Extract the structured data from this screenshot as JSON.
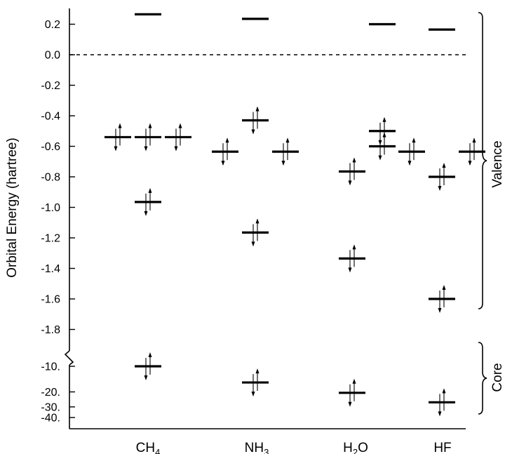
{
  "chart_data": {
    "type": "scatter",
    "ylabel": "Orbital Energy (hartree)",
    "categories": [
      "CH4",
      "NH3",
      "H2O",
      "HF"
    ],
    "y_axis_valence": {
      "range": [
        -1.8,
        0.3
      ],
      "ticks": [
        0.2,
        0.0,
        -0.2,
        -0.4,
        -0.6,
        -0.8,
        -1.0,
        -1.2,
        -1.4,
        -1.6,
        -1.8
      ],
      "tick_labels": [
        "0.2",
        "0.0",
        "-0.2",
        "-0.4",
        "-0.6",
        "-0.8",
        "-1.0",
        "-1.2",
        "-1.4",
        "-1.6",
        "-1.8"
      ]
    },
    "y_axis_core": {
      "ticks": [
        -10,
        -20,
        -30,
        -40
      ],
      "tick_labels": [
        "-10.",
        "-20.",
        "-30.",
        "-40."
      ]
    },
    "zero_reference": {
      "value": 0.0,
      "style": "dashed"
    },
    "orbitals": [
      {
        "molecule": "CH4",
        "energy": 0.265,
        "occupied": false,
        "degeneracy": 1
      },
      {
        "molecule": "CH4",
        "energy": -0.54,
        "occupied": true,
        "degeneracy": 3
      },
      {
        "molecule": "CH4",
        "energy": -0.965,
        "occupied": true,
        "degeneracy": 1
      },
      {
        "molecule": "CH4",
        "energy": -10.0,
        "occupied": true,
        "degeneracy": 1,
        "region": "core"
      },
      {
        "molecule": "NH3",
        "energy": 0.235,
        "occupied": false,
        "degeneracy": 1
      },
      {
        "molecule": "NH3",
        "energy": -0.43,
        "occupied": true,
        "degeneracy": 1
      },
      {
        "molecule": "NH3",
        "energy": -0.635,
        "occupied": true,
        "degeneracy": 2
      },
      {
        "molecule": "NH3",
        "energy": -1.165,
        "occupied": true,
        "degeneracy": 1
      },
      {
        "molecule": "NH3",
        "energy": -15.5,
        "occupied": true,
        "degeneracy": 1,
        "region": "core"
      },
      {
        "molecule": "H2O",
        "energy": 0.2,
        "occupied": false,
        "degeneracy": 1
      },
      {
        "molecule": "H2O",
        "energy": -0.5,
        "occupied": true,
        "degeneracy": 1
      },
      {
        "molecule": "H2O",
        "energy": -0.6,
        "occupied": true,
        "degeneracy": 1
      },
      {
        "molecule": "H2O",
        "energy": -0.765,
        "occupied": true,
        "degeneracy": 1
      },
      {
        "molecule": "H2O",
        "energy": -1.335,
        "occupied": true,
        "degeneracy": 1
      },
      {
        "molecule": "H2O",
        "energy": -20.5,
        "occupied": true,
        "degeneracy": 1,
        "region": "core"
      },
      {
        "molecule": "HF",
        "energy": 0.165,
        "occupied": false,
        "degeneracy": 1
      },
      {
        "molecule": "HF",
        "energy": -0.635,
        "occupied": true,
        "degeneracy": 2
      },
      {
        "molecule": "HF",
        "energy": -0.8,
        "occupied": true,
        "degeneracy": 1
      },
      {
        "molecule": "HF",
        "energy": -1.6,
        "occupied": true,
        "degeneracy": 1
      },
      {
        "molecule": "HF",
        "energy": -26.5,
        "occupied": true,
        "degeneracy": 1,
        "region": "core"
      }
    ],
    "brackets": [
      {
        "label": "Valence",
        "range": [
          -1.6,
          0.27
        ]
      },
      {
        "label": "Core",
        "range": [
          -40,
          -10
        ]
      }
    ]
  },
  "labels": {
    "categories": [
      {
        "base": "CH",
        "sub": "4"
      },
      {
        "base": "NH",
        "sub": "3"
      },
      {
        "base": "H",
        "sub": "2",
        "tail": "O"
      },
      {
        "base": "HF",
        "sub": "",
        "tail": ""
      }
    ]
  }
}
